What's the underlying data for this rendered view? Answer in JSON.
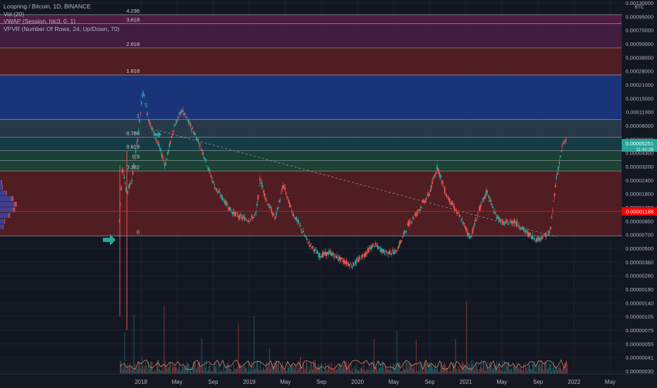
{
  "header": {
    "symbol_line": "Loopring / Bitcoin, 1D, BINANCE",
    "indicator_1": "Vol (20)",
    "indicator_2": "VWAP (Session, hlc3, 0, 1)",
    "indicator_3": "VPVR (Number Of Rows, 24, Up/Down, 70)"
  },
  "colors": {
    "background": "#131722",
    "up": "#26a69a",
    "down": "#ef5350",
    "grid": "#1e222d",
    "price_tag_current": "#26a69a",
    "price_tag_line": "#ff0000",
    "arrow": "#26a69a"
  },
  "chart_data": {
    "type": "candlestick",
    "title": "Loopring / Bitcoin, 1D, BINANCE",
    "scale": "log",
    "y_unit": "BTC",
    "y_ticks": [
      "0.00130000",
      "0.00095000",
      "0.00070000",
      "0.00050000",
      "0.00038000",
      "0.00028000",
      "0.00021000",
      "0.00015000",
      "0.00011000",
      "0.00008000",
      "0.00006000",
      "0.00004300",
      "0.00003200",
      "0.00002400",
      "0.00001800",
      "0.00001300",
      "0.00000950",
      "0.00000700",
      "0.00000500",
      "0.00000360",
      "0.00000260",
      "0.00000190",
      "0.00000140",
      "0.00000105",
      "0.00000075",
      "0.00000055",
      "0.00000041",
      "0.00000030"
    ],
    "x_ticks": [
      "2018",
      "May",
      "Sep",
      "2019",
      "May",
      "Sep",
      "2020",
      "May",
      "Sep",
      "2021",
      "May",
      "Sep",
      "2022",
      "May"
    ],
    "price_labels": [
      {
        "text": "0.00005251",
        "sub": "11:41:28",
        "value": 5.251e-05,
        "color": "#26a69a"
      },
      {
        "text": "0.00001188",
        "value": 1.188e-05,
        "color": "#ff0000"
      }
    ],
    "fib_levels": [
      {
        "label": "0",
        "value": 6.8e-06
      },
      {
        "label": "0.382",
        "value": 2.9e-05
      },
      {
        "label": "0.5",
        "value": 3.65e-05
      },
      {
        "label": "0.618",
        "value": 4.55e-05
      },
      {
        "label": "0.786",
        "value": 6.25e-05
      },
      {
        "label": "1",
        "value": 9.2e-05
      },
      {
        "label": "1.618",
        "value": 0.000258
      },
      {
        "label": "2.618",
        "value": 0.00046
      },
      {
        "label": "3.618",
        "value": 0.00081
      },
      {
        "label": "4.236",
        "value": 0.00099
      }
    ],
    "fib_zone_colors": [
      "#5c1e22",
      "#214a37",
      "#1c4738",
      "#17424a",
      "#2b3f4f",
      "#1c3a8a",
      "#5c1e22",
      "#4a1f45",
      "#5a1d48"
    ],
    "price_series": [
      {
        "t": 0,
        "v": 6.8e-06
      },
      {
        "t": 0.3,
        "v": 3.3e-05
      },
      {
        "t": 0.6,
        "v": 1.8e-05
      },
      {
        "t": 1,
        "v": 2.5e-05
      },
      {
        "t": 1.4,
        "v": 6e-05
      },
      {
        "t": 1.8,
        "v": 0.000185
      },
      {
        "t": 2.2,
        "v": 9e-05
      },
      {
        "t": 2.8,
        "v": 5.8e-05
      },
      {
        "t": 3.4,
        "v": 3.3e-05
      },
      {
        "t": 4.0,
        "v": 7.5e-05
      },
      {
        "t": 4.6,
        "v": 0.000115
      },
      {
        "t": 5.2,
        "v": 8.2e-05
      },
      {
        "t": 5.8,
        "v": 5.8e-05
      },
      {
        "t": 6.4,
        "v": 3.5e-05
      },
      {
        "t": 7.0,
        "v": 2.1e-05
      },
      {
        "t": 7.6,
        "v": 1.6e-05
      },
      {
        "t": 8.2,
        "v": 1.2e-05
      },
      {
        "t": 8.8,
        "v": 1.05e-05
      },
      {
        "t": 9.5,
        "v": 9.8e-06
      },
      {
        "t": 10.0,
        "v": 1.1e-05
      },
      {
        "t": 10.3,
        "v": 2.5e-05
      },
      {
        "t": 10.8,
        "v": 1.5e-05
      },
      {
        "t": 11.4,
        "v": 1e-05
      },
      {
        "t": 12.0,
        "v": 2.2e-05
      },
      {
        "t": 12.6,
        "v": 1.2e-05
      },
      {
        "t": 13.2,
        "v": 8.5e-06
      },
      {
        "t": 13.8,
        "v": 5.8e-06
      },
      {
        "t": 14.6,
        "v": 4.2e-06
      },
      {
        "t": 15.4,
        "v": 4.5e-06
      },
      {
        "t": 16.2,
        "v": 3.8e-06
      },
      {
        "t": 17.0,
        "v": 3.3e-06
      },
      {
        "t": 17.8,
        "v": 4.2e-06
      },
      {
        "t": 18.6,
        "v": 5.5e-06
      },
      {
        "t": 19.4,
        "v": 4.5e-06
      },
      {
        "t": 20.2,
        "v": 4.6e-06
      },
      {
        "t": 21.0,
        "v": 8.5e-06
      },
      {
        "t": 21.8,
        "v": 1.2e-05
      },
      {
        "t": 22.6,
        "v": 1.8e-05
      },
      {
        "t": 23.2,
        "v": 3.2e-05
      },
      {
        "t": 23.8,
        "v": 1.8e-05
      },
      {
        "t": 24.4,
        "v": 1.3e-05
      },
      {
        "t": 25.0,
        "v": 9.5e-06
      },
      {
        "t": 25.6,
        "v": 6.5e-06
      },
      {
        "t": 26.2,
        "v": 1.2e-05
      },
      {
        "t": 26.8,
        "v": 1.9e-05
      },
      {
        "t": 27.4,
        "v": 1.1e-05
      },
      {
        "t": 28.0,
        "v": 9e-06
      },
      {
        "t": 28.8,
        "v": 9.5e-06
      },
      {
        "t": 29.6,
        "v": 7.5e-06
      },
      {
        "t": 30.4,
        "v": 6.2e-06
      },
      {
        "t": 31.0,
        "v": 6.8e-06
      },
      {
        "t": 31.4,
        "v": 7.5e-06
      },
      {
        "t": 31.8,
        "v": 2.3e-05
      },
      {
        "t": 32.3,
        "v": 5.2e-05
      },
      {
        "t": 32.6,
        "v": 6e-05
      }
    ],
    "x_domain": [
      0,
      32.6
    ]
  }
}
